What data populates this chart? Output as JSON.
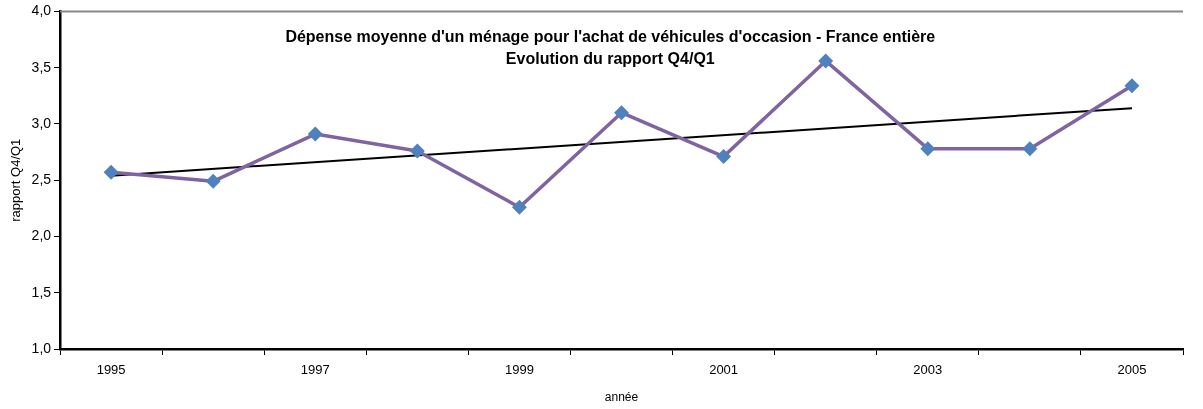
{
  "chart_data": {
    "type": "line",
    "title": "Dépense moyenne d'un ménage pour l'achat de véhicules d'occasion - France entière\nEvolution du rapport Q4/Q1",
    "xlabel": "année",
    "ylabel": "rapport Q4/Q1",
    "categories": [
      "1995",
      null,
      "1997",
      null,
      "1999",
      null,
      "2001",
      null,
      "2003",
      null,
      "2005"
    ],
    "series": [
      {
        "color": "#8064a2",
        "colors": [
          "#4f81bd",
          "#4f81bd",
          "#4f81bd",
          "#4f81bd",
          "#4f81bd",
          "#4f81bd",
          "#4f81bd",
          "#4f81bd",
          "#4f81bd",
          "#4f81bd",
          "#4f81bd"
        ],
        "marker": "diamond",
        "values": [
          2.57,
          2.49,
          2.91,
          2.76,
          2.26,
          3.1,
          2.71,
          3.56,
          2.78,
          2.78,
          3.34
        ]
      },
      {
        "type": "line",
        "color": "#000000",
        "marker": "none",
        "values": [
          2.54,
          null,
          null,
          null,
          null,
          null,
          null,
          null,
          null,
          null,
          3.14
        ]
      }
    ],
    "ylim": [
      1,
      4
    ],
    "yticks": [
      {
        "value": 1,
        "label": "1,0"
      },
      {
        "value": 1.5,
        "label": "1,5"
      },
      {
        "value": 2,
        "label": "2,0"
      },
      {
        "value": 2.5,
        "label": "2,5"
      },
      {
        "value": 3,
        "label": "3,0"
      },
      {
        "value": 3.5,
        "label": "3,5"
      },
      {
        "value": 4,
        "label": "4,0"
      }
    ],
    "grid": false,
    "legend": false
  }
}
